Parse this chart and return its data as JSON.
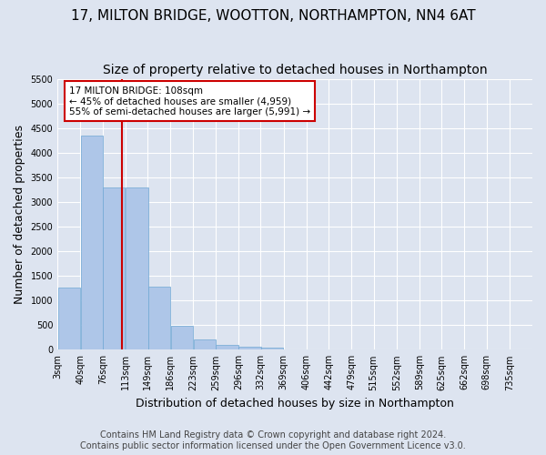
{
  "title": "17, MILTON BRIDGE, WOOTTON, NORTHAMPTON, NN4 6AT",
  "subtitle": "Size of property relative to detached houses in Northampton",
  "xlabel": "Distribution of detached houses by size in Northampton",
  "ylabel": "Number of detached properties",
  "footer_line1": "Contains HM Land Registry data © Crown copyright and database right 2024.",
  "footer_line2": "Contains public sector information licensed under the Open Government Licence v3.0.",
  "bin_labels": [
    "3sqm",
    "40sqm",
    "76sqm",
    "113sqm",
    "149sqm",
    "186sqm",
    "223sqm",
    "259sqm",
    "296sqm",
    "332sqm",
    "369sqm",
    "406sqm",
    "442sqm",
    "479sqm",
    "515sqm",
    "552sqm",
    "589sqm",
    "625sqm",
    "662sqm",
    "698sqm",
    "735sqm"
  ],
  "bin_edges": [
    3,
    40,
    76,
    113,
    149,
    186,
    223,
    259,
    296,
    332,
    369,
    406,
    442,
    479,
    515,
    552,
    589,
    625,
    662,
    698,
    735
  ],
  "bar_heights": [
    1270,
    4350,
    3300,
    3300,
    1280,
    490,
    210,
    90,
    60,
    45,
    0,
    0,
    0,
    0,
    0,
    0,
    0,
    0,
    0,
    0
  ],
  "bar_color": "#aec6e8",
  "bar_edge_color": "#6fa8d4",
  "vline_x": 108,
  "vline_color": "#cc0000",
  "annotation_text": "17 MILTON BRIDGE: 108sqm\n← 45% of detached houses are smaller (4,959)\n55% of semi-detached houses are larger (5,991) →",
  "annotation_box_color": "#ffffff",
  "annotation_box_edgecolor": "#cc0000",
  "ylim": [
    0,
    5500
  ],
  "yticks": [
    0,
    500,
    1000,
    1500,
    2000,
    2500,
    3000,
    3500,
    4000,
    4500,
    5000,
    5500
  ],
  "background_color": "#dde4f0",
  "plot_background": "#dde4f0",
  "grid_color": "#ffffff",
  "title_fontsize": 11,
  "subtitle_fontsize": 10,
  "axis_label_fontsize": 9,
  "tick_fontsize": 7,
  "footer_fontsize": 7
}
